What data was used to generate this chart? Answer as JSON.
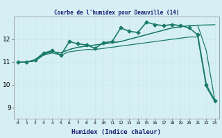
{
  "title": "Courbe de l'humidex pour Deauville (14)",
  "xlabel": "Humidex (Indice chaleur)",
  "background_color": "#d6eff5",
  "grid_color": "#c8e8ee",
  "line_color": "#1a7a6a",
  "x_ticks": [
    0,
    1,
    2,
    3,
    4,
    5,
    6,
    7,
    8,
    9,
    10,
    11,
    12,
    13,
    14,
    15,
    16,
    17,
    18,
    19,
    20,
    21,
    22,
    23
  ],
  "ylim": [
    8.5,
    13.0
  ],
  "xlim": [
    -0.5,
    23.5
  ],
  "yticks": [
    9,
    10,
    11,
    12
  ],
  "series": [
    {
      "x": [
        0,
        1,
        2,
        3,
        4,
        5,
        6,
        7,
        8,
        9,
        10,
        11,
        12,
        13,
        14,
        15,
        16,
        17,
        18,
        19,
        20,
        21,
        22,
        23
      ],
      "y": [
        11.0,
        11.0,
        11.1,
        11.4,
        11.5,
        11.3,
        11.9,
        11.8,
        11.75,
        11.6,
        11.85,
        11.9,
        12.5,
        12.35,
        12.3,
        12.75,
        12.65,
        12.6,
        12.65,
        12.6,
        12.5,
        12.2,
        10.0,
        9.3
      ],
      "marker": "D",
      "markersize": 2.5,
      "linewidth": 1.2
    },
    {
      "x": [
        0,
        1,
        2,
        3,
        4,
        5,
        6,
        7,
        8,
        9,
        10,
        11,
        12,
        13,
        14,
        15,
        16,
        17,
        18,
        19,
        20,
        21,
        22,
        23
      ],
      "y": [
        11.0,
        11.0,
        11.05,
        11.35,
        11.45,
        11.4,
        11.55,
        11.65,
        11.7,
        11.75,
        11.8,
        11.85,
        11.9,
        12.0,
        12.1,
        12.2,
        12.3,
        12.4,
        12.5,
        12.55,
        12.6,
        12.62,
        12.63,
        12.64
      ],
      "marker": false,
      "linewidth": 0.9
    },
    {
      "x": [
        0,
        1,
        2,
        3,
        4,
        5,
        6,
        7,
        8,
        9,
        10,
        11,
        12,
        13,
        14,
        15,
        16,
        17,
        18,
        19,
        20,
        21,
        22,
        23
      ],
      "y": [
        11.0,
        11.0,
        11.05,
        11.35,
        11.45,
        11.4,
        11.55,
        11.65,
        11.7,
        11.75,
        11.8,
        11.85,
        11.9,
        12.0,
        12.1,
        12.2,
        12.3,
        12.4,
        12.5,
        12.55,
        12.6,
        12.62,
        11.5,
        9.3
      ],
      "marker": false,
      "linewidth": 0.9
    },
    {
      "x": [
        0,
        1,
        2,
        3,
        4,
        5,
        6,
        7,
        8,
        9,
        10,
        11,
        12,
        13,
        14,
        15,
        16,
        17,
        18,
        19,
        20,
        21,
        22,
        23
      ],
      "y": [
        11.0,
        11.0,
        11.05,
        11.3,
        11.4,
        11.3,
        11.45,
        11.5,
        11.55,
        11.55,
        11.6,
        11.65,
        11.7,
        11.75,
        11.8,
        11.85,
        11.9,
        11.95,
        12.0,
        12.05,
        12.1,
        12.1,
        9.9,
        9.25
      ],
      "marker": false,
      "linewidth": 0.9
    }
  ]
}
